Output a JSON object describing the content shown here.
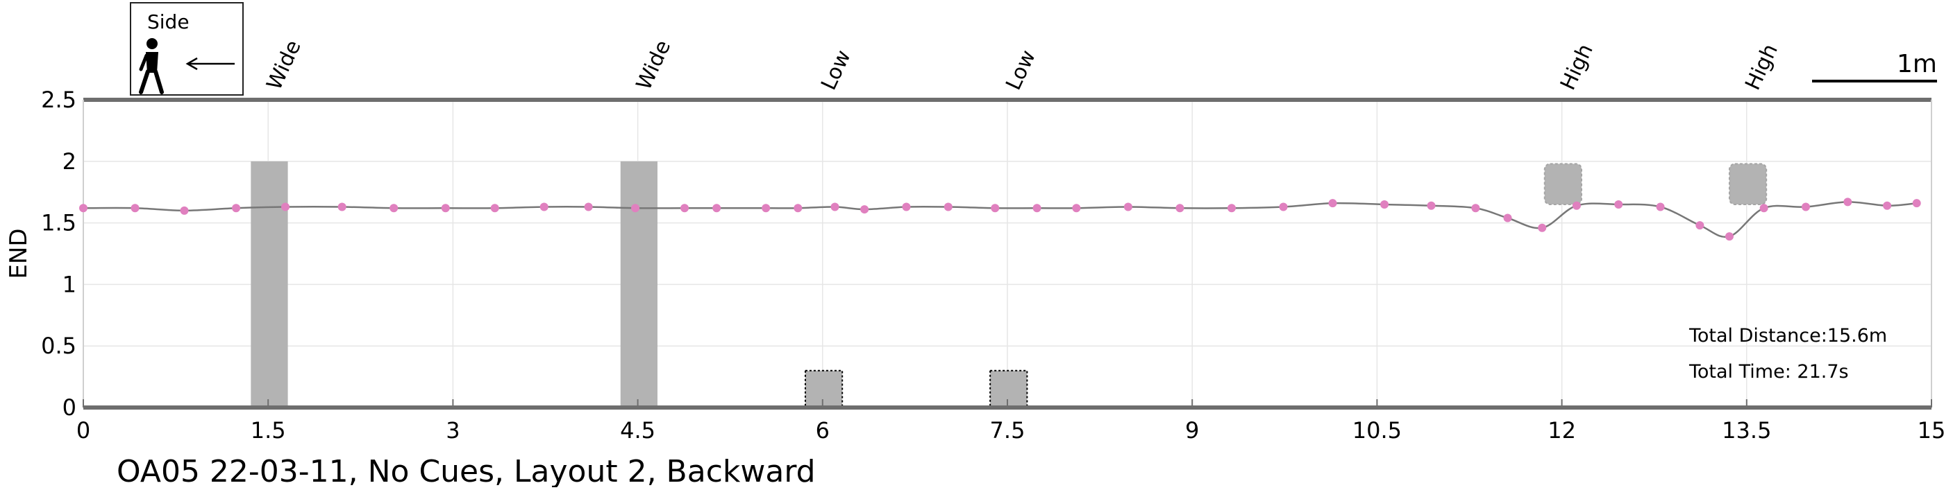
{
  "figure": {
    "caption": "OA05 22-03-11, No Cues, Layout 2, Backward",
    "legend_label": "Side",
    "scale_label": "1m",
    "total_distance": "Total Distance:15.6m",
    "total_time": "Total Time: 21.7s"
  },
  "colors": {
    "trace": "#777777",
    "marker": "#e080bf",
    "obstacle": "#b3b3b3",
    "axis": "#6e6e6e",
    "grid": "#e6e6e6"
  },
  "chart_data": {
    "type": "line",
    "title": "",
    "xlabel": "",
    "ylabel": "END",
    "xlim": [
      0,
      15
    ],
    "ylim": [
      0,
      2.5
    ],
    "grid": true,
    "xticks": [
      0,
      1.5,
      3,
      4.5,
      6,
      7.5,
      9,
      10.5,
      12,
      13.5,
      15
    ],
    "xtick_labels": [
      "0",
      "1.5",
      "3",
      "4.5",
      "6",
      "7.5",
      "9",
      "10.5",
      "12",
      "13.5",
      "15"
    ],
    "yticks": [
      0,
      0.5,
      1,
      1.5,
      2,
      2.5
    ],
    "ytick_labels": [
      "0",
      "0.5",
      "1",
      "1.5",
      "2",
      "2.5"
    ],
    "series": [
      {
        "x": [
          0,
          0.42,
          0.82,
          1.24,
          1.64,
          2.1,
          2.52,
          2.94,
          3.34,
          3.74,
          4.1,
          4.48,
          4.88,
          5.14,
          5.54,
          5.8,
          6.1,
          6.34,
          6.68,
          7.02,
          7.4,
          7.74,
          8.06,
          8.48,
          8.9,
          9.32,
          9.74,
          10.14,
          10.56,
          10.94,
          11.3,
          11.56,
          11.84,
          12.12,
          12.46,
          12.8,
          13.12,
          13.36,
          13.64,
          13.98,
          14.32,
          14.64,
          14.88
        ],
        "y": [
          1.62,
          1.62,
          1.6,
          1.62,
          1.63,
          1.63,
          1.62,
          1.62,
          1.62,
          1.63,
          1.63,
          1.62,
          1.62,
          1.62,
          1.62,
          1.62,
          1.63,
          1.61,
          1.63,
          1.63,
          1.62,
          1.62,
          1.62,
          1.63,
          1.62,
          1.62,
          1.63,
          1.66,
          1.65,
          1.64,
          1.62,
          1.54,
          1.46,
          1.64,
          1.65,
          1.63,
          1.48,
          1.39,
          1.62,
          1.63,
          1.67,
          1.64,
          1.66
        ]
      }
    ],
    "obstacles": [
      {
        "label": "Wide",
        "x0": 1.36,
        "x1": 1.66,
        "y0": 0,
        "y1": 2.0,
        "style": "wall"
      },
      {
        "label": "Wide",
        "x0": 4.36,
        "x1": 4.66,
        "y0": 0,
        "y1": 2.0,
        "style": "wall"
      },
      {
        "label": "Low",
        "x0": 5.86,
        "x1": 6.16,
        "y0": 0,
        "y1": 0.3,
        "style": "low"
      },
      {
        "label": "Low",
        "x0": 7.36,
        "x1": 7.66,
        "y0": 0,
        "y1": 0.3,
        "style": "low"
      },
      {
        "label": "High",
        "x0": 11.86,
        "x1": 12.16,
        "y0": 1.65,
        "y1": 1.98,
        "style": "high"
      },
      {
        "label": "High",
        "x0": 13.36,
        "x1": 13.66,
        "y0": 1.65,
        "y1": 1.98,
        "style": "high"
      }
    ]
  }
}
